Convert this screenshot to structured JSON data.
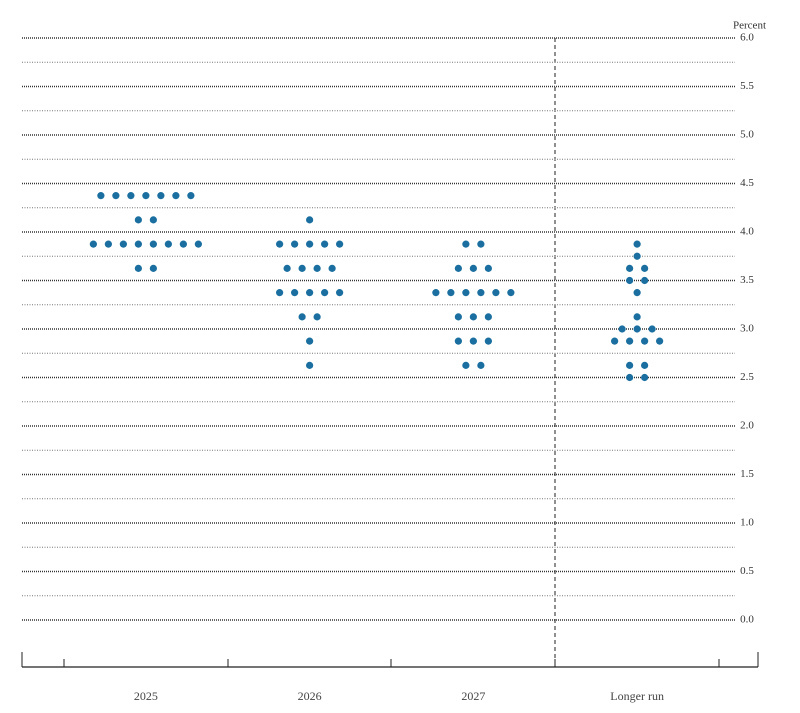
{
  "chart_data": {
    "type": "dot",
    "y_label": "Percent",
    "categories": [
      "2025",
      "2026",
      "2027",
      "Longer run"
    ],
    "values": [
      [
        4.375,
        4.375,
        4.375,
        4.375,
        4.375,
        4.375,
        4.375,
        4.125,
        4.125,
        3.875,
        3.875,
        3.875,
        3.875,
        3.875,
        3.875,
        3.875,
        3.875,
        3.625,
        3.625
      ],
      [
        4.125,
        3.875,
        3.875,
        3.875,
        3.875,
        3.875,
        3.625,
        3.625,
        3.625,
        3.625,
        3.375,
        3.375,
        3.375,
        3.375,
        3.375,
        3.125,
        3.125,
        2.875,
        2.625
      ],
      [
        3.875,
        3.875,
        3.625,
        3.625,
        3.625,
        3.375,
        3.375,
        3.375,
        3.375,
        3.375,
        3.375,
        3.125,
        3.125,
        3.125,
        2.875,
        2.875,
        2.875,
        2.625,
        2.625
      ],
      [
        3.875,
        3.75,
        3.625,
        3.625,
        3.5,
        3.5,
        3.375,
        3.125,
        3.0,
        3.0,
        3.0,
        2.875,
        2.875,
        2.875,
        2.875,
        2.625,
        2.625,
        2.5,
        2.5
      ]
    ],
    "color": "#1a6fa0",
    "ylim": [
      0,
      6
    ],
    "yticks": [
      {
        "value": 0,
        "label": "0.0"
      },
      0.5,
      {
        "value": 1,
        "label": "1.0"
      },
      1.5,
      {
        "value": 2,
        "label": "2.0"
      },
      2.5,
      {
        "value": 3,
        "label": "3.0"
      },
      3.5,
      {
        "value": 4,
        "label": "4.0"
      },
      4.5,
      {
        "value": 5,
        "label": "5.0"
      },
      5.5,
      {
        "value": 6,
        "label": "6.0"
      }
    ],
    "minor_yticks": [
      0.25,
      0.75,
      1.25,
      1.75,
      2.25,
      2.75,
      3.25,
      3.75,
      4.25,
      4.75,
      5.25,
      5.75
    ],
    "grid": true
  }
}
